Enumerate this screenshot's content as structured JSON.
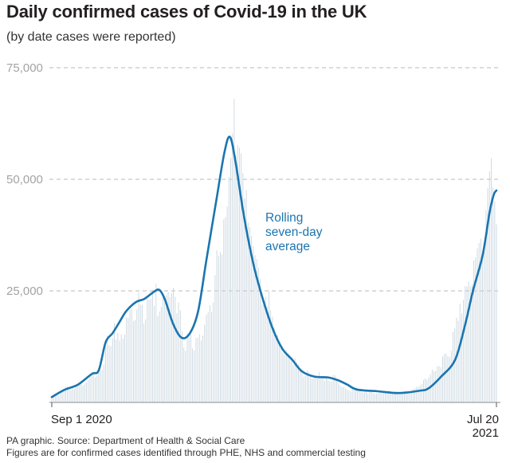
{
  "header": {
    "title": "Daily confirmed cases of Covid-19 in the UK",
    "subtitle": "(by date cases were reported)"
  },
  "footer": {
    "source": "PA graphic. Source: Department of Health & Social Care",
    "note": "Figures are for confirmed cases identified through PHE, NHS and commercial testing"
  },
  "colors": {
    "average_line": "#1a75b0",
    "daily_bars": "#c9d6df",
    "gridline": "#b8b8b8",
    "axis_text": "#a3a3a3",
    "text": "#231f20"
  },
  "chart_data": {
    "type": "bar",
    "xlabel": "",
    "ylabel": "",
    "x_start": "2020-09-01",
    "x_end": "2021-07-20",
    "x_tick_labels": [
      {
        "date": "2020-09-01",
        "lines": [
          "Sep 1 2020"
        ]
      },
      {
        "date": "2021-07-20",
        "lines": [
          "Jul 20",
          "2021"
        ]
      }
    ],
    "ylim": [
      0,
      75000
    ],
    "yticks": [
      25000,
      50000,
      75000
    ],
    "ytick_labels": [
      "25,000",
      "50,000",
      "75,000"
    ],
    "grid": "horizontal-dashed",
    "annotation": {
      "lines": [
        "Rolling",
        "seven-day",
        "average"
      ],
      "series": "Rolling seven-day average"
    },
    "series": [
      {
        "name": "Rolling seven-day average",
        "kind": "line",
        "points": [
          [
            "2020-09-01",
            1200
          ],
          [
            "2020-09-10",
            2800
          ],
          [
            "2020-09-20",
            4000
          ],
          [
            "2020-09-30",
            6400
          ],
          [
            "2020-10-05",
            7200
          ],
          [
            "2020-10-10",
            13500
          ],
          [
            "2020-10-15",
            15500
          ],
          [
            "2020-10-20",
            18000
          ],
          [
            "2020-10-25",
            20500
          ],
          [
            "2020-11-01",
            22500
          ],
          [
            "2020-11-07",
            23200
          ],
          [
            "2020-11-14",
            24800
          ],
          [
            "2020-11-18",
            25200
          ],
          [
            "2020-11-22",
            23000
          ],
          [
            "2020-11-28",
            17500
          ],
          [
            "2020-12-04",
            14500
          ],
          [
            "2020-12-10",
            15500
          ],
          [
            "2020-12-16",
            20500
          ],
          [
            "2020-12-22",
            32000
          ],
          [
            "2020-12-29",
            45000
          ],
          [
            "2021-01-04",
            56000
          ],
          [
            "2021-01-08",
            59500
          ],
          [
            "2021-01-12",
            54000
          ],
          [
            "2021-01-18",
            42000
          ],
          [
            "2021-01-25",
            31000
          ],
          [
            "2021-02-01",
            23000
          ],
          [
            "2021-02-08",
            16500
          ],
          [
            "2021-02-15",
            12000
          ],
          [
            "2021-02-22",
            9600
          ],
          [
            "2021-03-01",
            7000
          ],
          [
            "2021-03-10",
            5800
          ],
          [
            "2021-03-20",
            5600
          ],
          [
            "2021-03-27",
            5000
          ],
          [
            "2021-04-03",
            4000
          ],
          [
            "2021-04-10",
            2900
          ],
          [
            "2021-04-25",
            2500
          ],
          [
            "2021-05-10",
            2100
          ],
          [
            "2021-05-25",
            2600
          ],
          [
            "2021-06-01",
            3200
          ],
          [
            "2021-06-10",
            5800
          ],
          [
            "2021-06-20",
            9500
          ],
          [
            "2021-06-27",
            17000
          ],
          [
            "2021-07-03",
            25000
          ],
          [
            "2021-07-10",
            33000
          ],
          [
            "2021-07-15",
            42500
          ],
          [
            "2021-07-18",
            46500
          ],
          [
            "2021-07-20",
            47500
          ]
        ]
      },
      {
        "name": "Daily confirmed cases",
        "kind": "bars",
        "note": "one bar per day, values approximated from the figure",
        "values": [
          1500,
          1700,
          1900,
          1600,
          1450,
          2400,
          2500,
          2900,
          3500,
          3600,
          3350,
          2700,
          3100,
          3000,
          3500,
          3800,
          4300,
          4200,
          3800,
          4250,
          4500,
          5000,
          5900,
          6400,
          6900,
          5600,
          6000,
          6700,
          7200,
          7300,
          8500,
          12500,
          15000,
          12800,
          12600,
          14400,
          17800,
          14100,
          15600,
          13900,
          15200,
          14300,
          15200,
          19100,
          18900,
          20700,
          21200,
          18200,
          18500,
          20800,
          24600,
          21900,
          21900,
          17700,
          18600,
          23300,
          23000,
          23200,
          24400,
          21600,
          26600,
          19300,
          20400,
          21400,
          24100,
          22900,
          24000,
          24700,
          23600,
          24500,
          25700,
          23700,
          20000,
          22400,
          20600,
          15900,
          12300,
          11600,
          15500,
          14600,
          15300,
          12100,
          11700,
          14400,
          14500,
          15300,
          13900,
          15000,
          17400,
          19700,
          20200,
          21800,
          20300,
          22400,
          28500,
          34100,
          32800,
          33700,
          33100,
          41000,
          41500,
          43900,
          50500,
          54800,
          60300,
          68000,
          55300,
          57700,
          57100,
          55800,
          51400,
          45700,
          47600,
          40300,
          39300,
          37300,
          35000,
          33000,
          32100,
          30100,
          27600,
          22000,
          22000,
          23700,
          21500,
          24900,
          20700,
          19200,
          16800,
          14300,
          15200,
          13300,
          12900,
          11100,
          10600,
          11700,
          11100,
          10600,
          10100,
          8400,
          9900,
          9000,
          8500,
          7500,
          6600,
          5800,
          6000,
          7200,
          6800,
          6200,
          5400,
          5800,
          5500,
          5300,
          6800,
          5900,
          5800,
          4900,
          5600,
          5100,
          4800,
          4700,
          6200,
          6100,
          5300,
          4400,
          3900,
          3400,
          3500,
          3100,
          2900,
          2700,
          2500,
          3000,
          2700,
          2700,
          2700,
          2500,
          2400,
          2300,
          2200,
          2300,
          2000,
          2300,
          2500,
          2100,
          1900,
          2000,
          2100,
          2300,
          2400,
          2500,
          2600,
          2400,
          2700,
          2500,
          2300,
          2200,
          2100,
          2200,
          2100,
          2300,
          2400,
          2600,
          2700,
          2600,
          2500,
          2700,
          3000,
          3100,
          3500,
          3500,
          3800,
          4100,
          5000,
          5400,
          5100,
          5700,
          6300,
          7400,
          7000,
          7100,
          8100,
          8100,
          7900,
          10300,
          10900,
          11000,
          10400,
          10200,
          11600,
          15800,
          16600,
          19000,
          18300,
          22100,
          19900,
          23000,
          26000,
          26000,
          27100,
          26000,
          26500,
          31800,
          32500,
          34500,
          35700,
          36700,
          31800,
          34400,
          43000,
          48100,
          51800,
          54700,
          48200,
          45100,
          39900
        ]
      }
    ]
  }
}
